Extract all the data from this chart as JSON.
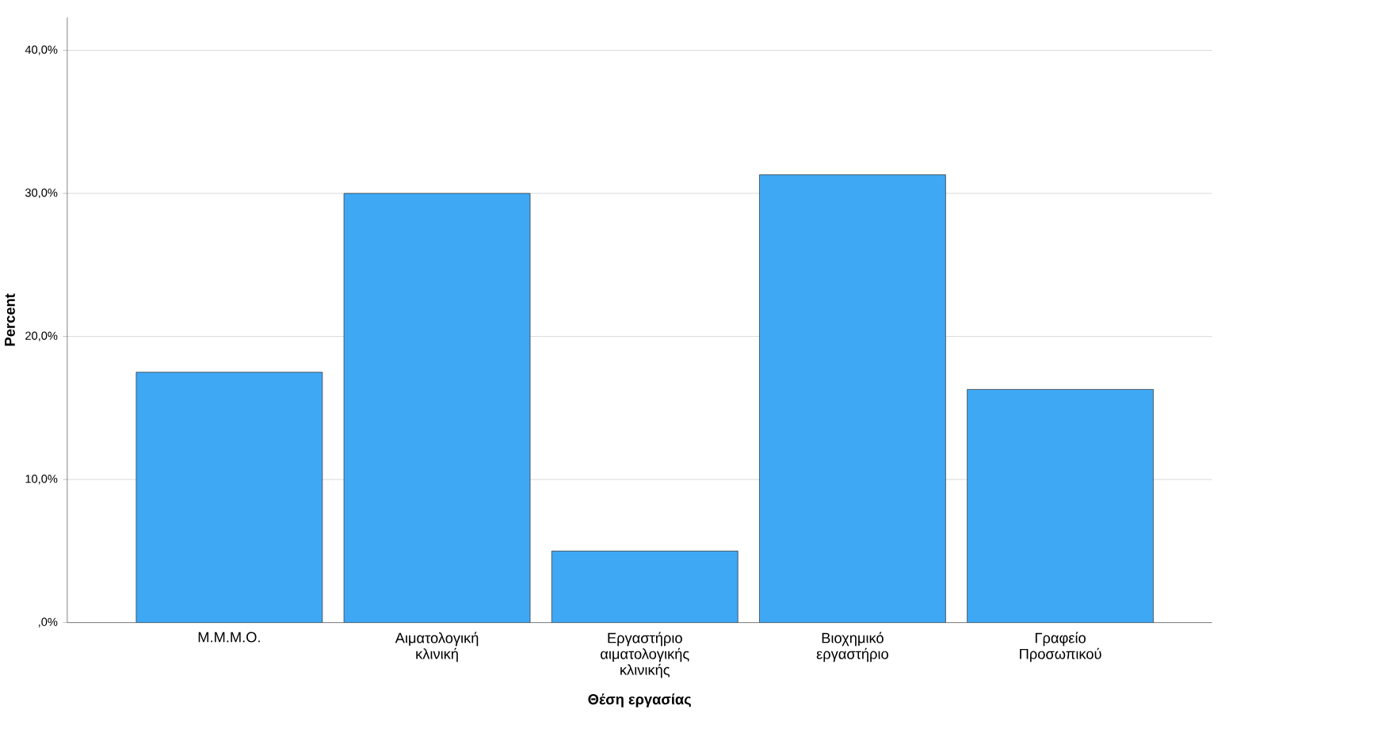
{
  "chart_data": {
    "type": "bar",
    "xlabel": "Θέση εργασίας",
    "ylabel": "Percent",
    "categories": [
      "Μ.Μ.Μ.Ο.",
      "Αιματολογική κλινική",
      "Εργαστήριο αιματολογικής κλινικής",
      "Βιοχημικό εργαστήριο",
      "Γραφείο Προσωπικού"
    ],
    "values": [
      17.5,
      30.0,
      5.0,
      31.3,
      16.3
    ],
    "color": "#3ea8f5",
    "ylim": [
      0,
      42.3
    ],
    "yticks": [
      {
        "value": 0,
        "label": ",0%"
      },
      {
        "value": 10,
        "label": "10,0%"
      },
      {
        "value": 20,
        "label": "20,0%"
      },
      {
        "value": 30,
        "label": "30,0%"
      },
      {
        "value": 40,
        "label": "40,0%"
      }
    ],
    "grid": "y"
  }
}
